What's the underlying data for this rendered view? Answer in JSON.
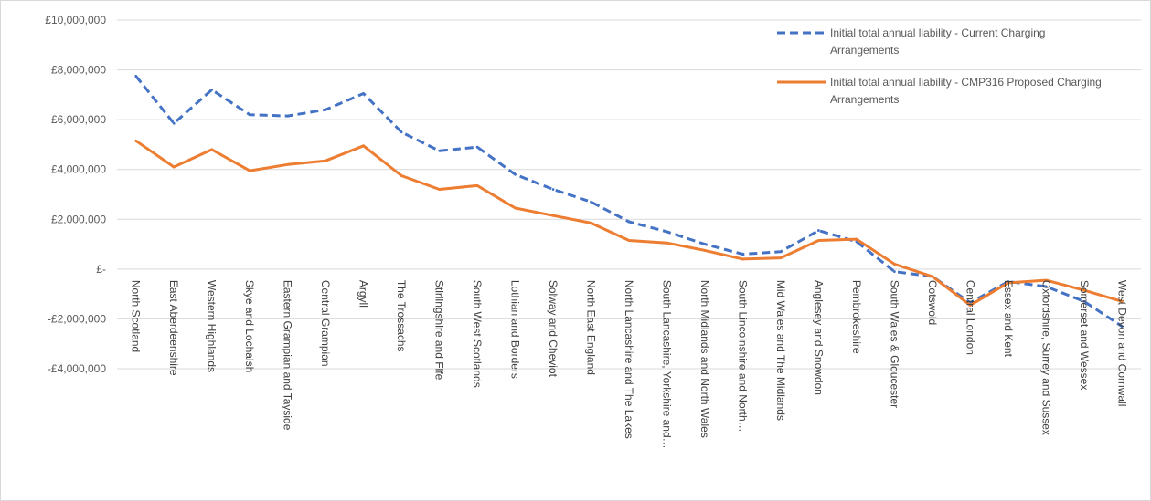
{
  "chart_data": {
    "type": "line",
    "categories": [
      "North Scotland",
      "East Aberdeenshire",
      "Western Highlands",
      "Skye and Lochalsh",
      "Eastern Grampian and Tayside",
      "Central Grampian",
      "Argyll",
      "The Trossachs",
      "Stirlingshire and Fife",
      "South West Scotlands",
      "Lothian and Borders",
      "Solway and Cheviot",
      "North East England",
      "North Lancashire and The Lakes",
      "South Lancashire, Yorkshire and…",
      "North Midlands and North Wales",
      "South Lincolnshire and North…",
      "Mid Wales and The Midlands",
      "Anglesey and Snowdon",
      "Pembrokeshire",
      "South Wales & Gloucester",
      "Cotswold",
      "Central London",
      "Essex and Kent",
      "Oxfordshire, Surrey and Sussex",
      "Somerset and Wessex",
      "West Devon and Cornwall"
    ],
    "series": [
      {
        "name": "Initial total annual liability - Current Charging Arrangements",
        "style": "dashed",
        "color": "#4472c4",
        "values": [
          7750000,
          5850000,
          7200000,
          6200000,
          6150000,
          6400000,
          7050000,
          5500000,
          4750000,
          4900000,
          3800000,
          3200000,
          2700000,
          1900000,
          1500000,
          1000000,
          600000,
          700000,
          1550000,
          1100000,
          -100000,
          -300000,
          -1350000,
          -500000,
          -700000,
          -1300000,
          -2300000
        ]
      },
      {
        "name": "Initial total annual liability - CMP316 Proposed Charging Arrangements",
        "style": "solid",
        "color": "#ed7d31",
        "values": [
          5150000,
          4100000,
          4800000,
          3950000,
          4200000,
          4350000,
          4950000,
          3750000,
          3200000,
          3350000,
          2450000,
          2150000,
          1850000,
          1150000,
          1050000,
          750000,
          400000,
          450000,
          1150000,
          1200000,
          200000,
          -300000,
          -1450000,
          -550000,
          -450000,
          -850000,
          -1300000
        ]
      }
    ],
    "y_ticks": [
      "£10,000,000",
      "£8,000,000",
      "£6,000,000",
      "£4,000,000",
      "£2,000,000",
      "£-",
      "-£2,000,000",
      "-£4,000,000"
    ],
    "y_tick_values": [
      10000000,
      8000000,
      6000000,
      4000000,
      2000000,
      0,
      -2000000,
      -4000000
    ],
    "ylim": [
      -4000000,
      10000000
    ],
    "grid": true,
    "legend_position": "top-right",
    "title": "",
    "xlabel": "",
    "ylabel": ""
  }
}
